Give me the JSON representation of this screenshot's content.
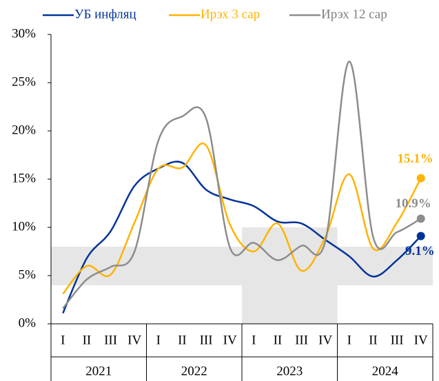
{
  "chart_data": {
    "type": "line",
    "categories": [
      "I",
      "II",
      "III",
      "IV",
      "I",
      "II",
      "III",
      "IV",
      "I",
      "II",
      "III",
      "IV",
      "I",
      "II",
      "III",
      "IV"
    ],
    "category_groups": [
      "2021",
      "2022",
      "2023",
      "2024"
    ],
    "series": [
      {
        "name": "УБ инфляц",
        "color": "#003399",
        "values": [
          1.1,
          6.8,
          9.6,
          14.3,
          16.1,
          16.7,
          13.9,
          12.9,
          12.2,
          10.6,
          10.4,
          8.7,
          7.0,
          4.9,
          6.6,
          9.1
        ],
        "value_labels": [
          null,
          null,
          null,
          null,
          null,
          null,
          null,
          null,
          null,
          null,
          null,
          null,
          null,
          null,
          null,
          "9.1%"
        ]
      },
      {
        "name": "Ирэх 3 сар",
        "color": "#ffb300",
        "values": [
          3.1,
          6.0,
          5.1,
          10.5,
          16.1,
          16.2,
          18.5,
          10.3,
          7.5,
          10.4,
          5.5,
          9.0,
          15.5,
          7.8,
          10.5,
          15.1
        ],
        "value_labels": [
          null,
          null,
          null,
          null,
          null,
          null,
          null,
          null,
          null,
          null,
          null,
          null,
          null,
          null,
          null,
          "15.1%"
        ]
      },
      {
        "name": "Ирэх 12 сар",
        "color": "#8c8c8c",
        "values": [
          1.6,
          4.6,
          5.9,
          7.5,
          19.0,
          21.5,
          21.3,
          7.9,
          8.4,
          6.6,
          8.1,
          8.6,
          27.2,
          9.0,
          9.5,
          10.9
        ],
        "value_labels": [
          null,
          null,
          null,
          null,
          null,
          null,
          null,
          null,
          null,
          null,
          null,
          null,
          null,
          null,
          null,
          "10.9%"
        ]
      }
    ],
    "target_bands": [
      [
        4,
        8
      ],
      [
        4,
        8
      ],
      [
        0,
        10
      ],
      [
        4,
        8
      ]
    ],
    "ylim": [
      0,
      30
    ],
    "yticks": [
      {
        "value": 0,
        "label": "0%"
      },
      {
        "value": 5,
        "label": "5%"
      },
      {
        "value": 10,
        "label": "10%"
      },
      {
        "value": 15,
        "label": "15%"
      },
      {
        "value": 20,
        "label": "20%"
      },
      {
        "value": 25,
        "label": "25%"
      },
      {
        "value": 30,
        "label": "30%"
      }
    ]
  }
}
